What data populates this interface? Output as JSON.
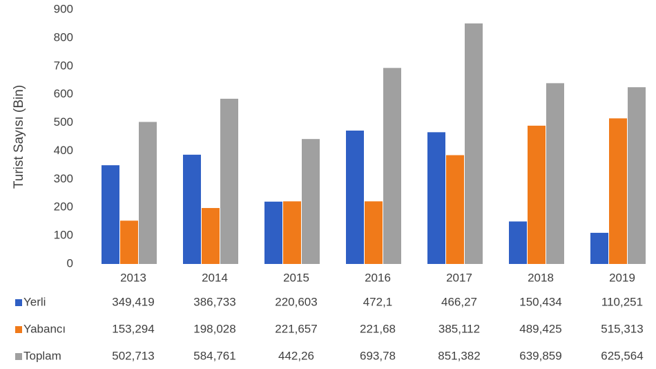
{
  "chart_data": {
    "type": "bar",
    "y_label": "Turist Sayısı (Bin)",
    "categories": [
      "2013",
      "2014",
      "2015",
      "2016",
      "2017",
      "2018",
      "2019"
    ],
    "series": [
      {
        "name": "Yerli",
        "color": "#2f5fc4",
        "values": [
          349.419,
          386.733,
          220.603,
          472.1,
          466.27,
          150.434,
          110.251
        ],
        "value_labels": [
          "349,419",
          "386,733",
          "220,603",
          "472,1",
          "466,27",
          "150,434",
          "110,251"
        ]
      },
      {
        "name": "Yabancı",
        "color": "#f07a1a",
        "values": [
          153.294,
          198.028,
          221.657,
          221.68,
          385.112,
          489.425,
          515.313
        ],
        "value_labels": [
          "153,294",
          "198,028",
          "221,657",
          "221,68",
          "385,112",
          "489,425",
          "515,313"
        ]
      },
      {
        "name": "Toplam",
        "color": "#a0a0a0",
        "values": [
          502.713,
          584.761,
          442.26,
          693.78,
          851.382,
          639.859,
          625.564
        ],
        "value_labels": [
          "502,713",
          "584,761",
          "442,26",
          "693,78",
          "851,382",
          "639,859",
          "625,564"
        ]
      }
    ],
    "ylim": [
      0,
      900
    ],
    "yticks": [
      0,
      100,
      200,
      300,
      400,
      500,
      600,
      700,
      800,
      900
    ],
    "grid": false
  }
}
